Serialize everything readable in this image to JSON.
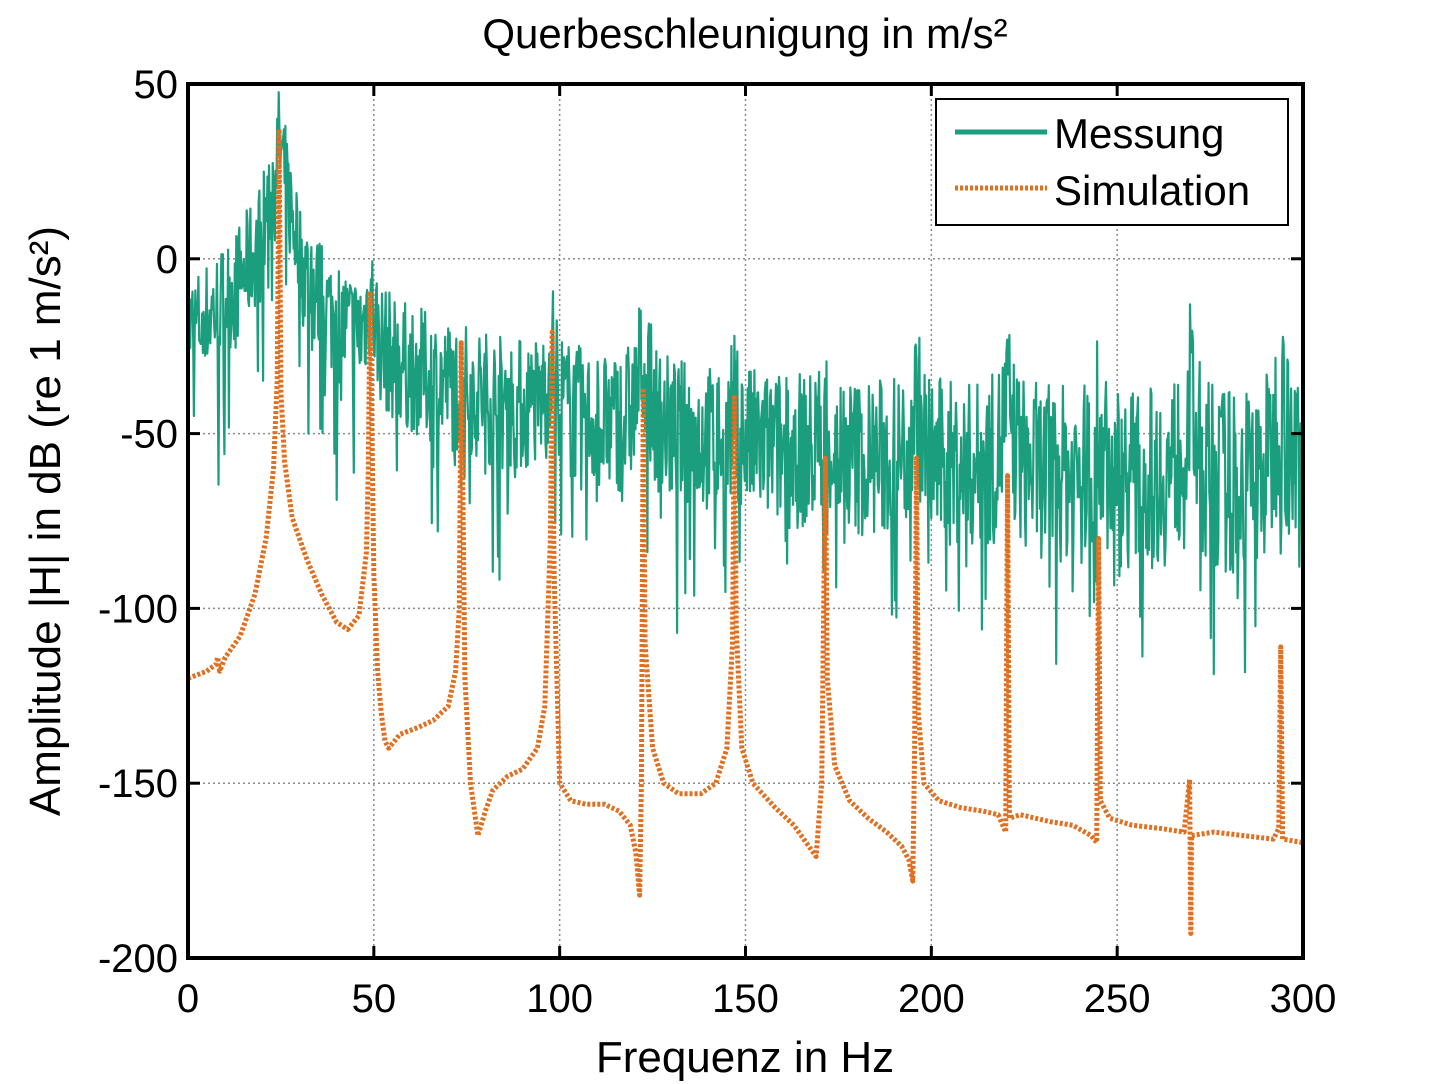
{
  "chart_data": {
    "type": "line",
    "title": "Querbeschleunigung in m/s²",
    "xlabel": "Frequenz in Hz",
    "ylabel": "Amplitude |H| in dB (re 1 m/s²)",
    "xlim": [
      0,
      300
    ],
    "ylim": [
      -200,
      50
    ],
    "x_ticks": [
      0,
      50,
      100,
      150,
      200,
      250,
      300
    ],
    "y_ticks": [
      -200,
      -150,
      -100,
      -50,
      0,
      50
    ],
    "grid": true,
    "legend_position": "top-right",
    "series": [
      {
        "name": "Messung",
        "color": "#1b9e7e",
        "style": "solid",
        "peaks": [
          {
            "f": 24.5,
            "db": 32
          },
          {
            "f": 49,
            "db": -12
          },
          {
            "f": 73.5,
            "db": -58
          },
          {
            "f": 98,
            "db": -28
          },
          {
            "f": 122.5,
            "db": -27
          },
          {
            "f": 147,
            "db": -46
          },
          {
            "f": 171.5,
            "db": -49
          },
          {
            "f": 196,
            "db": -42
          },
          {
            "f": 220.5,
            "db": -42
          },
          {
            "f": 245,
            "db": -50
          },
          {
            "f": 269.5,
            "db": -40
          },
          {
            "f": 294,
            "db": -40
          }
        ]
      },
      {
        "name": "Simulation",
        "color": "#e07020",
        "style": "dotted",
        "points": [
          [
            0,
            -120
          ],
          [
            5,
            -118
          ],
          [
            7.5,
            -116
          ],
          [
            8,
            -114
          ],
          [
            8.5,
            -118
          ],
          [
            10,
            -114
          ],
          [
            14,
            -108
          ],
          [
            18,
            -96
          ],
          [
            21,
            -80
          ],
          [
            23,
            -60
          ],
          [
            24,
            -35
          ],
          [
            24.5,
            37
          ],
          [
            25,
            -38
          ],
          [
            26,
            -58
          ],
          [
            28,
            -74
          ],
          [
            32,
            -86
          ],
          [
            36,
            -96
          ],
          [
            40,
            -104
          ],
          [
            43,
            -106
          ],
          [
            46,
            -102
          ],
          [
            48,
            -84
          ],
          [
            48.5,
            -60
          ],
          [
            49,
            -10
          ],
          [
            49.5,
            -50
          ],
          [
            50,
            -90
          ],
          [
            51,
            -118
          ],
          [
            52,
            -130
          ],
          [
            53,
            -138
          ],
          [
            54,
            -140
          ],
          [
            57,
            -136
          ],
          [
            62,
            -134
          ],
          [
            66,
            -132
          ],
          [
            70,
            -128
          ],
          [
            72,
            -118
          ],
          [
            73,
            -100
          ],
          [
            73.5,
            -24
          ],
          [
            74,
            -70
          ],
          [
            74.5,
            -120
          ],
          [
            76,
            -150
          ],
          [
            78,
            -165
          ],
          [
            80,
            -158
          ],
          [
            82,
            -152
          ],
          [
            86,
            -148
          ],
          [
            90,
            -146
          ],
          [
            94,
            -140
          ],
          [
            96,
            -128
          ],
          [
            97.5,
            -80
          ],
          [
            98,
            -21
          ],
          [
            98.5,
            -90
          ],
          [
            100,
            -150
          ],
          [
            103,
            -155
          ],
          [
            107,
            -156
          ],
          [
            112,
            -156
          ],
          [
            116,
            -158
          ],
          [
            119,
            -162
          ],
          [
            120.5,
            -170
          ],
          [
            121.5,
            -182
          ],
          [
            122,
            -150
          ],
          [
            122.5,
            -37
          ],
          [
            123,
            -110
          ],
          [
            125,
            -140
          ],
          [
            128,
            -150
          ],
          [
            132,
            -153
          ],
          [
            138,
            -153
          ],
          [
            142,
            -150
          ],
          [
            145,
            -140
          ],
          [
            146.5,
            -110
          ],
          [
            147,
            -39
          ],
          [
            147.5,
            -105
          ],
          [
            149,
            -140
          ],
          [
            152,
            -150
          ],
          [
            158,
            -157
          ],
          [
            163,
            -162
          ],
          [
            167,
            -168
          ],
          [
            169,
            -171
          ],
          [
            170.5,
            -150
          ],
          [
            171.5,
            -57
          ],
          [
            172,
            -120
          ],
          [
            174,
            -145
          ],
          [
            178,
            -155
          ],
          [
            183,
            -160
          ],
          [
            188,
            -164
          ],
          [
            192,
            -168
          ],
          [
            194,
            -172
          ],
          [
            195,
            -178
          ],
          [
            195.5,
            -140
          ],
          [
            196,
            -57
          ],
          [
            196.5,
            -130
          ],
          [
            198,
            -150
          ],
          [
            202,
            -155
          ],
          [
            208,
            -157
          ],
          [
            214,
            -158
          ],
          [
            218,
            -159
          ],
          [
            220,
            -164
          ],
          [
            220.5,
            -62
          ],
          [
            221,
            -160
          ],
          [
            224,
            -159
          ],
          [
            232,
            -161
          ],
          [
            238,
            -162
          ],
          [
            243,
            -165
          ],
          [
            244.5,
            -167
          ],
          [
            245,
            -80
          ],
          [
            245.5,
            -155
          ],
          [
            248,
            -160
          ],
          [
            254,
            -162
          ],
          [
            262,
            -163
          ],
          [
            268,
            -164
          ],
          [
            269.5,
            -149
          ],
          [
            269.8,
            -193
          ],
          [
            270,
            -165
          ],
          [
            276,
            -164
          ],
          [
            284,
            -165
          ],
          [
            292,
            -166
          ],
          [
            293.5,
            -163
          ],
          [
            294,
            -111
          ],
          [
            294.5,
            -166
          ],
          [
            300,
            -167
          ]
        ]
      }
    ]
  }
}
